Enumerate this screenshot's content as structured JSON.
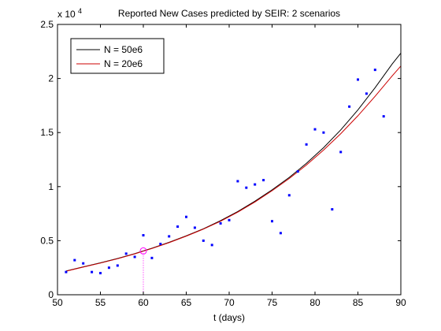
{
  "chart_data": {
    "type": "scatter",
    "title": "Reported New Cases predicted by SEIR: 2 scenarios",
    "xlabel": "t (days)",
    "ylabel": "",
    "y_exponent_label": "x 10",
    "y_exponent_power": "4",
    "xlim": [
      50,
      90
    ],
    "ylim": [
      0,
      25000
    ],
    "x_ticks": [
      50,
      55,
      60,
      65,
      70,
      75,
      80,
      85,
      90
    ],
    "x_tick_labels": [
      "50",
      "55",
      "60",
      "65",
      "70",
      "75",
      "80",
      "85",
      "90"
    ],
    "y_ticks": [
      0,
      5000,
      10000,
      15000,
      20000,
      25000
    ],
    "y_tick_labels": [
      "0",
      "0.5",
      "1",
      "1.5",
      "2",
      "2.5"
    ],
    "grid": false,
    "legend_position": "top-left",
    "marker_color": "#0000ff",
    "highlight_color": "#ff00ff",
    "series": [
      {
        "name": "N = 50e6",
        "color": "#000000",
        "x": [
          51,
          53,
          55,
          57,
          59,
          60,
          61,
          63,
          65,
          67,
          69,
          71,
          73,
          75,
          77,
          79,
          81,
          83,
          85,
          87,
          89,
          90
        ],
        "y": [
          2200,
          2580,
          2950,
          3350,
          3800,
          4050,
          4300,
          4850,
          5450,
          6100,
          6850,
          7700,
          8650,
          9700,
          10850,
          12150,
          13600,
          15250,
          17100,
          19150,
          21350,
          22350
        ]
      },
      {
        "name": "N = 20e6",
        "color": "#cc0000",
        "x": [
          51,
          53,
          55,
          57,
          59,
          60,
          61,
          63,
          65,
          67,
          69,
          71,
          73,
          75,
          77,
          79,
          81,
          83,
          85,
          87,
          89,
          90
        ],
        "y": [
          2180,
          2560,
          2930,
          3330,
          3780,
          4030,
          4280,
          4820,
          5420,
          6070,
          6800,
          7640,
          8580,
          9620,
          10750,
          12000,
          13380,
          14900,
          16550,
          18350,
          20250,
          21150
        ]
      }
    ],
    "points": {
      "x": [
        51,
        52,
        53,
        54,
        55,
        56,
        57,
        58,
        59,
        60,
        61,
        62,
        63,
        64,
        65,
        66,
        67,
        68,
        69,
        70,
        71,
        72,
        73,
        74,
        75,
        76,
        77,
        78,
        79,
        80,
        81,
        82,
        83,
        84,
        85,
        86,
        87,
        88
      ],
      "y": [
        2100,
        3200,
        2900,
        2100,
        2000,
        2500,
        2700,
        3800,
        3500,
        5500,
        3400,
        4700,
        5400,
        6300,
        7200,
        6200,
        5000,
        4600,
        6600,
        6900,
        10500,
        9900,
        10200,
        10600,
        6800,
        5700,
        9200,
        11400,
        13900,
        15300,
        15000,
        7900,
        13200,
        17400,
        19900,
        18600,
        20800,
        16500
      ]
    },
    "highlight": {
      "x": 60,
      "y": 4050
    }
  }
}
